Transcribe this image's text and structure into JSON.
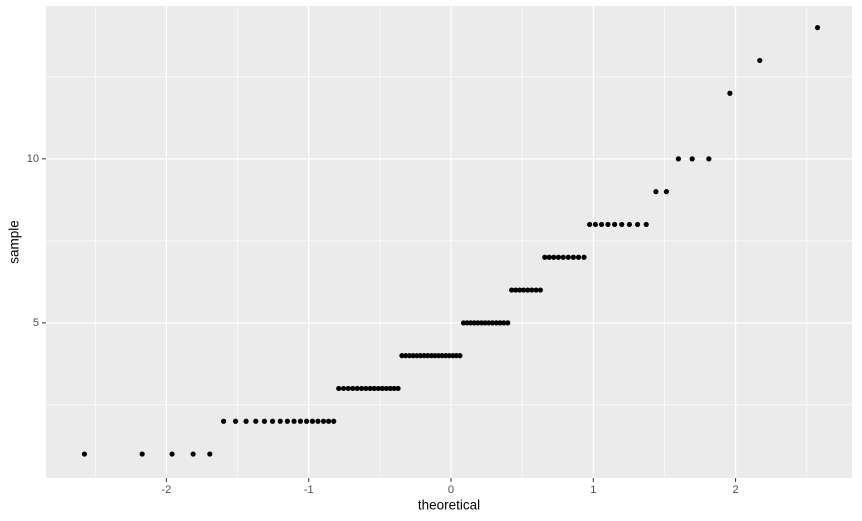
{
  "chart_data": {
    "type": "scatter",
    "x_label": "theoretical",
    "y_label": "sample",
    "x": [
      -2.576,
      -2.17,
      -1.96,
      -1.812,
      -1.695,
      -1.598,
      -1.514,
      -1.44,
      -1.372,
      -1.311,
      -1.254,
      -1.2,
      -1.15,
      -1.103,
      -1.058,
      -1.015,
      -0.974,
      -0.935,
      -0.896,
      -0.86,
      -0.824,
      -0.789,
      -0.755,
      -0.722,
      -0.69,
      -0.659,
      -0.628,
      -0.598,
      -0.568,
      -0.539,
      -0.51,
      -0.482,
      -0.454,
      -0.426,
      -0.399,
      -0.372,
      -0.345,
      -0.319,
      -0.292,
      -0.266,
      -0.24,
      -0.215,
      -0.189,
      -0.164,
      -0.138,
      -0.113,
      -0.088,
      -0.063,
      -0.038,
      -0.013,
      0.013,
      0.038,
      0.063,
      0.088,
      0.113,
      0.138,
      0.164,
      0.189,
      0.215,
      0.24,
      0.266,
      0.292,
      0.319,
      0.345,
      0.372,
      0.399,
      0.426,
      0.454,
      0.482,
      0.51,
      0.539,
      0.568,
      0.598,
      0.628,
      0.659,
      0.69,
      0.722,
      0.755,
      0.789,
      0.824,
      0.86,
      0.896,
      0.935,
      0.974,
      1.015,
      1.058,
      1.103,
      1.15,
      1.2,
      1.254,
      1.311,
      1.372,
      1.44,
      1.514,
      1.598,
      1.695,
      1.812,
      1.96,
      2.17,
      2.576
    ],
    "values": [
      1,
      1,
      1,
      1,
      1,
      2,
      2,
      2,
      2,
      2,
      2,
      2,
      2,
      2,
      2,
      2,
      2,
      2,
      2,
      2,
      2,
      3,
      3,
      3,
      3,
      3,
      3,
      3,
      3,
      3,
      3,
      3,
      3,
      3,
      3,
      3,
      4,
      4,
      4,
      4,
      4,
      4,
      4,
      4,
      4,
      4,
      4,
      4,
      4,
      4,
      4,
      4,
      4,
      5,
      5,
      5,
      5,
      5,
      5,
      5,
      5,
      5,
      5,
      5,
      5,
      5,
      6,
      6,
      6,
      6,
      6,
      6,
      6,
      6,
      7,
      7,
      7,
      7,
      7,
      7,
      7,
      7,
      7,
      8,
      8,
      8,
      8,
      8,
      8,
      8,
      8,
      8,
      9,
      9,
      10,
      10,
      10,
      12,
      13,
      14
    ],
    "color": "#000000",
    "xlim": [
      -2.846,
      2.818
    ],
    "ylim": [
      0.27,
      14.66
    ],
    "xticks": [
      -2,
      -1,
      0,
      1,
      2
    ],
    "yticks": [
      5,
      10
    ],
    "grid": true
  }
}
